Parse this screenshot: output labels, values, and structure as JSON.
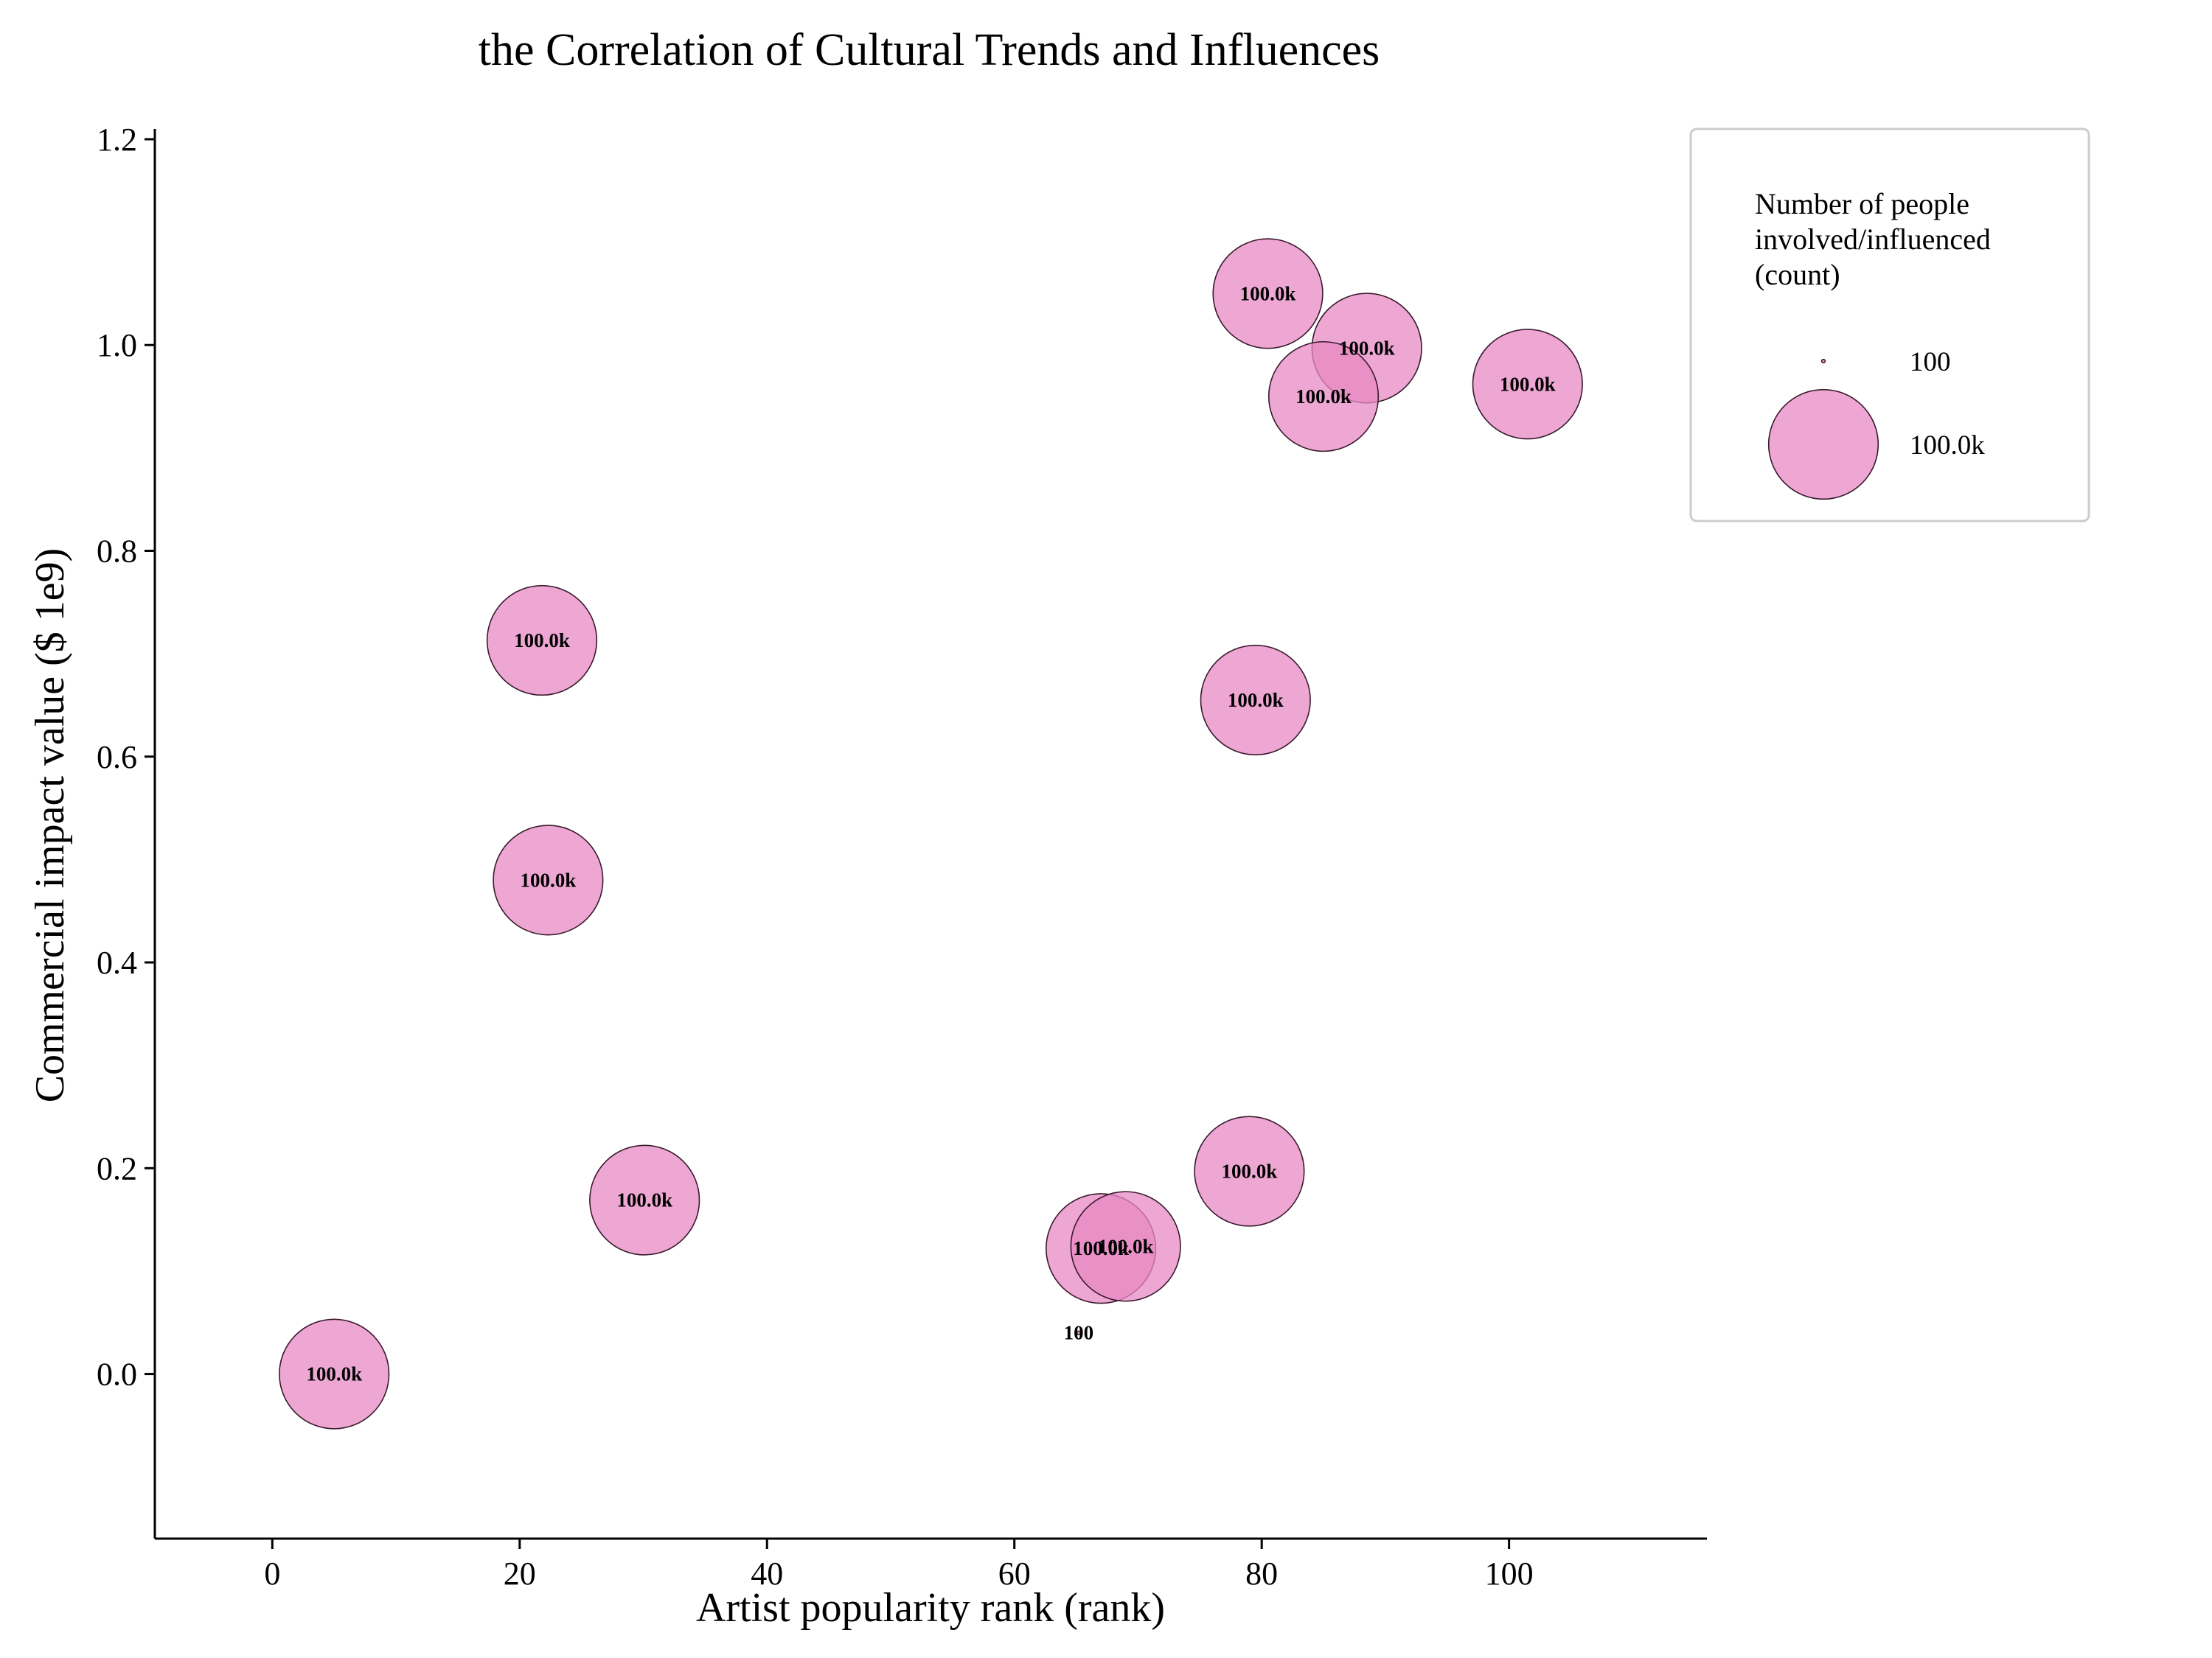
{
  "chart_data": {
    "type": "scatter",
    "subtype": "bubble",
    "title": "the Correlation of Cultural Trends and Influences",
    "xlabel": "Artist popularity rank (rank)",
    "ylabel": "Commercial impact value ($ 1e9)",
    "xlim": [
      -9.5,
      116
    ],
    "ylim": [
      -0.16,
      1.21
    ],
    "xticks": [
      "0",
      "20",
      "40",
      "60",
      "80",
      "100"
    ],
    "xtick_values": [
      0,
      20,
      40,
      60,
      80,
      100
    ],
    "yticks": [
      "0.0",
      "0.2",
      "0.4",
      "0.6",
      "0.8",
      "1.0",
      "1.2"
    ],
    "ytick_values": [
      0.0,
      0.2,
      0.4,
      0.6,
      0.8,
      1.0,
      1.2
    ],
    "grid": false,
    "legend_placement": "outside-top-right",
    "color": "#e78ac3",
    "edge_color": "#3a1a2e",
    "points": [
      {
        "x": 80.5,
        "y": 1.05,
        "size": 100000,
        "label": "100.0k"
      },
      {
        "x": 88.5,
        "y": 0.997,
        "size": 100000,
        "label": "100.0k"
      },
      {
        "x": 85.0,
        "y": 0.95,
        "size": 100000,
        "label": "100.0k"
      },
      {
        "x": 101.5,
        "y": 0.962,
        "size": 100000,
        "label": "100.0k"
      },
      {
        "x": 21.8,
        "y": 0.713,
        "size": 100000,
        "label": "100.0k"
      },
      {
        "x": 79.5,
        "y": 0.655,
        "size": 100000,
        "label": "100.0k"
      },
      {
        "x": 22.3,
        "y": 0.48,
        "size": 100000,
        "label": "100.0k"
      },
      {
        "x": 79.0,
        "y": 0.197,
        "size": 100000,
        "label": "100.0k"
      },
      {
        "x": 30.1,
        "y": 0.169,
        "size": 100000,
        "label": "100.0k"
      },
      {
        "x": 67.0,
        "y": 0.122,
        "size": 100000,
        "label": "100.0k"
      },
      {
        "x": 69.0,
        "y": 0.124,
        "size": 100000,
        "label": "100.0k"
      },
      {
        "x": 65.2,
        "y": 0.04,
        "size": 100,
        "label": "100"
      },
      {
        "x": 5.0,
        "y": 0.0,
        "size": 100000,
        "label": "100.0k"
      }
    ],
    "legend": {
      "title_lines": [
        "Number of people",
        "involved/influenced",
        "(count)"
      ],
      "entries": [
        {
          "label": "100",
          "size": 100
        },
        {
          "label": "100.0k",
          "size": 100000
        }
      ]
    }
  }
}
